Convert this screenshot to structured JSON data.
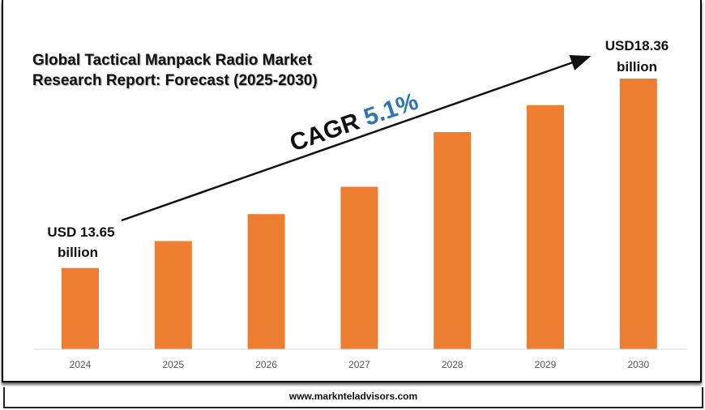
{
  "chart_data": {
    "type": "bar",
    "title": "Global Tactical Manpack Radio Market Research Report: Forecast (2025-2030)",
    "categories": [
      "2024",
      "2025",
      "2026",
      "2027",
      "2028",
      "2029",
      "2030"
    ],
    "values": [
      13.65,
      14.32,
      14.99,
      15.67,
      17.03,
      17.7,
      18.36
    ],
    "unit": "USD billion",
    "ylim": [
      11.63,
      18.36
    ],
    "grid": false,
    "bar_color": "#ED7D31",
    "annotations": {
      "start_label_line1": "USD 13.65",
      "start_label_line2": "billion",
      "end_label_line1": "USD18.36",
      "end_label_line2": "billion",
      "cagr_prefix": "CAGR",
      "cagr_value": "5.1%",
      "cagr_color": "#2E75B6"
    }
  },
  "footer": {
    "website": "www.marknteladvisors.com"
  }
}
